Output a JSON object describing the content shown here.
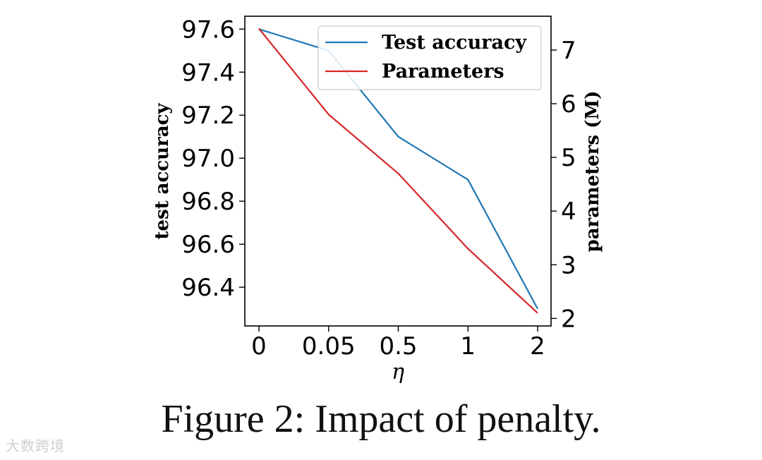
{
  "chart_data": {
    "type": "line",
    "categories": [
      "0",
      "0.05",
      "0.5",
      "1",
      "2"
    ],
    "xlabel": "η",
    "ylabel_left": "test accuracy",
    "ylabel_right": "parameters (M)",
    "ylim_left": [
      96.22,
      97.66
    ],
    "ylim_right": [
      1.86,
      7.63
    ],
    "yticks_left": [
      "96.4",
      "96.6",
      "96.8",
      "97.0",
      "97.2",
      "97.4",
      "97.6"
    ],
    "yticks_right": [
      "2",
      "3",
      "4",
      "5",
      "6",
      "7"
    ],
    "series": [
      {
        "name": "Test accuracy",
        "axis": "left",
        "color": "#1f77b4",
        "values": [
          97.6,
          97.5,
          97.1,
          96.9,
          96.3
        ]
      },
      {
        "name": "Parameters",
        "axis": "right",
        "color": "#d62728",
        "values": [
          7.4,
          5.8,
          4.7,
          3.3,
          2.1
        ]
      }
    ],
    "legend_position": "top-right"
  },
  "caption": "Figure 2: Impact of penalty.",
  "watermark": "大数跨境"
}
